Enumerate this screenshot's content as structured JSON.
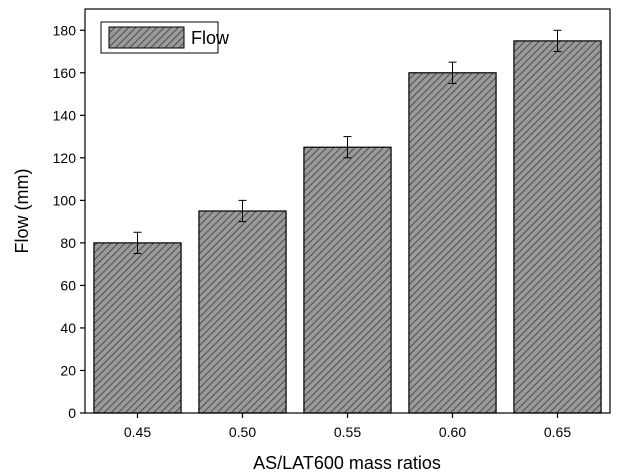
{
  "chart_data": {
    "type": "bar",
    "categories": [
      "0.45",
      "0.50",
      "0.55",
      "0.60",
      "0.65"
    ],
    "series": [
      {
        "name": "Flow",
        "values": [
          80,
          95,
          125,
          160,
          175
        ],
        "error": [
          5,
          5,
          5,
          5,
          5
        ]
      }
    ],
    "xlabel": "AS/LAT600 mass ratios",
    "ylabel": "Flow (mm)",
    "ylim": [
      0,
      190
    ],
    "yticks": [
      "0",
      "20",
      "40",
      "60",
      "80",
      "100",
      "120",
      "140",
      "160",
      "180"
    ],
    "grid": false,
    "legend_position": "top-left",
    "bar_fill": "#9a9a9a",
    "hatch_color": "#3a3a3a"
  }
}
